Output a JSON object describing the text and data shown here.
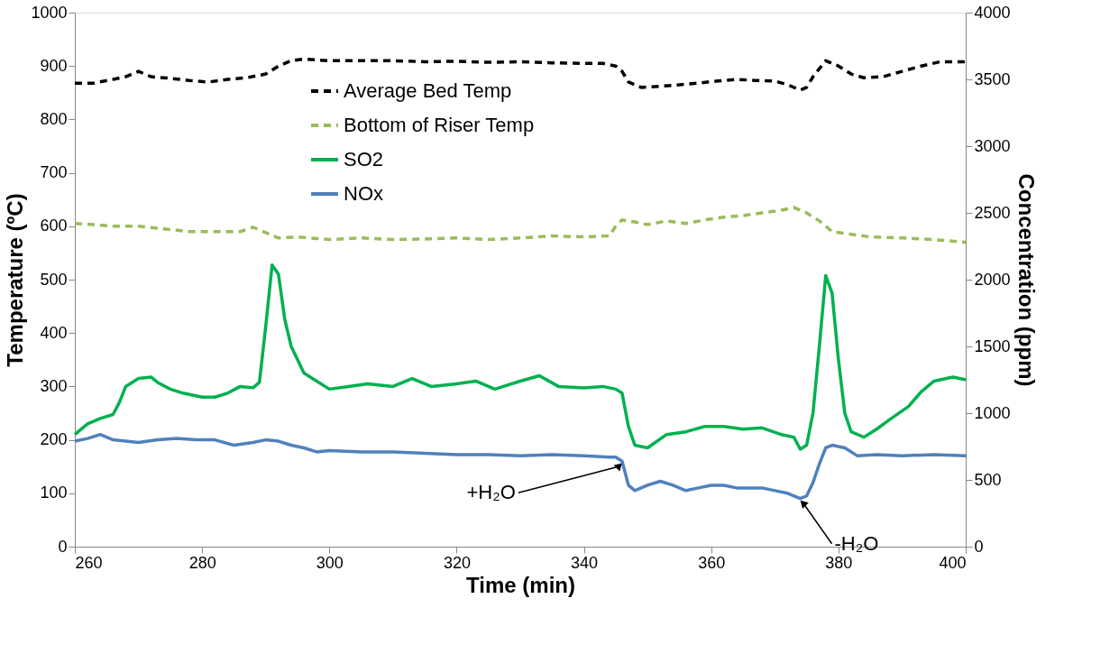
{
  "chart_data": {
    "type": "line",
    "xlabel": "Time (min)",
    "ylabel": "Temperature (ºC)",
    "y2label": "Concentration (ppm)",
    "xlim": [
      260,
      400
    ],
    "xticks": [
      260,
      280,
      300,
      320,
      340,
      360,
      380,
      400
    ],
    "ylim": [
      0,
      1000
    ],
    "yticks": [
      0,
      100,
      200,
      300,
      400,
      500,
      600,
      700,
      800,
      900,
      1000
    ],
    "y2lim": [
      0,
      4000
    ],
    "y2ticks": [
      0,
      500,
      1000,
      1500,
      2000,
      2500,
      3000,
      3500,
      4000
    ],
    "grid": false,
    "legend": "top",
    "marker": "none",
    "series": [
      {
        "name": "Average Bed Temp",
        "color": "#000000",
        "line_style": "dashed",
        "x": [
          260,
          263,
          266,
          268,
          270,
          272,
          275,
          278,
          281,
          284,
          287,
          290,
          292,
          294,
          296,
          300,
          305,
          310,
          315,
          320,
          325,
          330,
          335,
          340,
          343,
          345,
          346,
          347,
          349,
          352,
          355,
          358,
          361,
          364,
          367,
          370,
          372,
          374,
          375,
          376,
          377,
          378,
          380,
          382,
          384,
          387,
          390,
          393,
          396,
          400
        ],
        "values": [
          868,
          868,
          875,
          880,
          890,
          880,
          877,
          873,
          870,
          875,
          878,
          885,
          900,
          910,
          913,
          910,
          910,
          910,
          908,
          909,
          907,
          908,
          906,
          905,
          905,
          900,
          890,
          870,
          860,
          862,
          865,
          868,
          872,
          875,
          873,
          872,
          865,
          855,
          860,
          880,
          895,
          910,
          900,
          885,
          878,
          880,
          890,
          900,
          908,
          908
        ]
      },
      {
        "name": "Bottom of Riser Temp",
        "color": "#9bbb59",
        "line_style": "dashed",
        "x": [
          260,
          263,
          266,
          270,
          274,
          278,
          282,
          286,
          288,
          290,
          292,
          295,
          298,
          300,
          305,
          310,
          315,
          320,
          325,
          330,
          335,
          340,
          344,
          345,
          346,
          348,
          350,
          353,
          356,
          359,
          362,
          365,
          368,
          371,
          373,
          375,
          377,
          379,
          382,
          385,
          390,
          395,
          400
        ],
        "values": [
          605,
          603,
          600,
          600,
          595,
          590,
          590,
          590,
          598,
          588,
          578,
          580,
          577,
          575,
          578,
          575,
          576,
          578,
          575,
          578,
          582,
          580,
          582,
          600,
          612,
          608,
          603,
          610,
          605,
          612,
          617,
          620,
          625,
          630,
          635,
          625,
          610,
          590,
          585,
          580,
          578,
          575,
          570
        ]
      },
      {
        "name": "SO2",
        "color": "#00b050",
        "line_style": "solid",
        "axis": "y2",
        "x": [
          260,
          262,
          264,
          266,
          267,
          268,
          270,
          272,
          273,
          275,
          277,
          280,
          282,
          284,
          286,
          288,
          289,
          290,
          291,
          292,
          293,
          294,
          296,
          298,
          300,
          303,
          306,
          310,
          313,
          316,
          320,
          323,
          326,
          330,
          333,
          336,
          340,
          343,
          345,
          346,
          347,
          348,
          350,
          353,
          356,
          359,
          362,
          365,
          368,
          371,
          373,
          374,
          375,
          376,
          377,
          378,
          379,
          380,
          381,
          382,
          384,
          386,
          388,
          391,
          393,
          395,
          398,
          400
        ],
        "values": [
          840,
          920,
          960,
          990,
          1080,
          1200,
          1260,
          1270,
          1230,
          1180,
          1150,
          1120,
          1120,
          1150,
          1200,
          1190,
          1230,
          1650,
          2110,
          2040,
          1700,
          1500,
          1300,
          1240,
          1180,
          1200,
          1220,
          1200,
          1260,
          1200,
          1220,
          1240,
          1180,
          1240,
          1280,
          1200,
          1190,
          1200,
          1180,
          1150,
          900,
          760,
          740,
          840,
          860,
          900,
          900,
          880,
          890,
          840,
          820,
          730,
          760,
          1000,
          1500,
          2030,
          1900,
          1400,
          1000,
          860,
          820,
          880,
          950,
          1050,
          1160,
          1240,
          1270,
          1250
        ]
      },
      {
        "name": "NOx",
        "color": "#4f81bd",
        "line_style": "solid",
        "axis": "y2",
        "x": [
          260,
          262,
          264,
          266,
          268,
          270,
          273,
          276,
          279,
          282,
          285,
          288,
          290,
          292,
          294,
          296,
          298,
          300,
          305,
          310,
          315,
          320,
          325,
          330,
          335,
          340,
          344,
          345,
          346,
          347,
          348,
          350,
          352,
          354,
          356,
          358,
          360,
          362,
          364,
          366,
          368,
          370,
          372,
          374,
          375,
          376,
          377,
          378,
          379,
          381,
          383,
          386,
          390,
          395,
          400
        ],
        "values": [
          790,
          810,
          840,
          800,
          790,
          780,
          800,
          810,
          800,
          800,
          760,
          780,
          800,
          790,
          760,
          740,
          710,
          720,
          710,
          710,
          700,
          690,
          690,
          680,
          690,
          680,
          670,
          670,
          640,
          460,
          420,
          460,
          490,
          460,
          420,
          440,
          460,
          460,
          440,
          440,
          440,
          420,
          400,
          360,
          380,
          480,
          620,
          740,
          760,
          740,
          680,
          690,
          680,
          690,
          680
        ]
      }
    ],
    "annotations": [
      {
        "text": "+H₂O",
        "x": 346,
        "y": 160
      },
      {
        "text": "-H₂O",
        "x": 374,
        "y": 90
      }
    ]
  }
}
